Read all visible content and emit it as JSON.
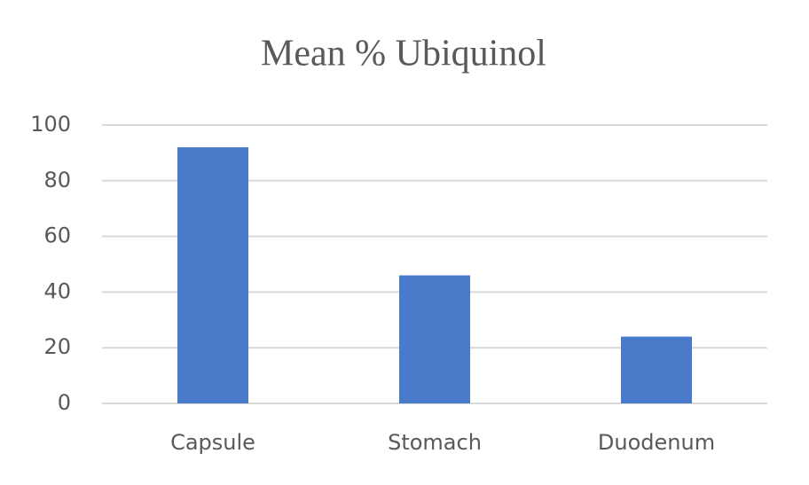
{
  "chart_data": {
    "type": "bar",
    "title": "Mean % Ubiquinol",
    "categories": [
      "Capsule",
      "Stomach",
      "Duodenum"
    ],
    "values": [
      92,
      46,
      24
    ],
    "color": "#4a7bca",
    "ylim": [
      0,
      100
    ],
    "yticks": [
      0,
      20,
      40,
      60,
      80,
      100
    ],
    "grid": true
  }
}
